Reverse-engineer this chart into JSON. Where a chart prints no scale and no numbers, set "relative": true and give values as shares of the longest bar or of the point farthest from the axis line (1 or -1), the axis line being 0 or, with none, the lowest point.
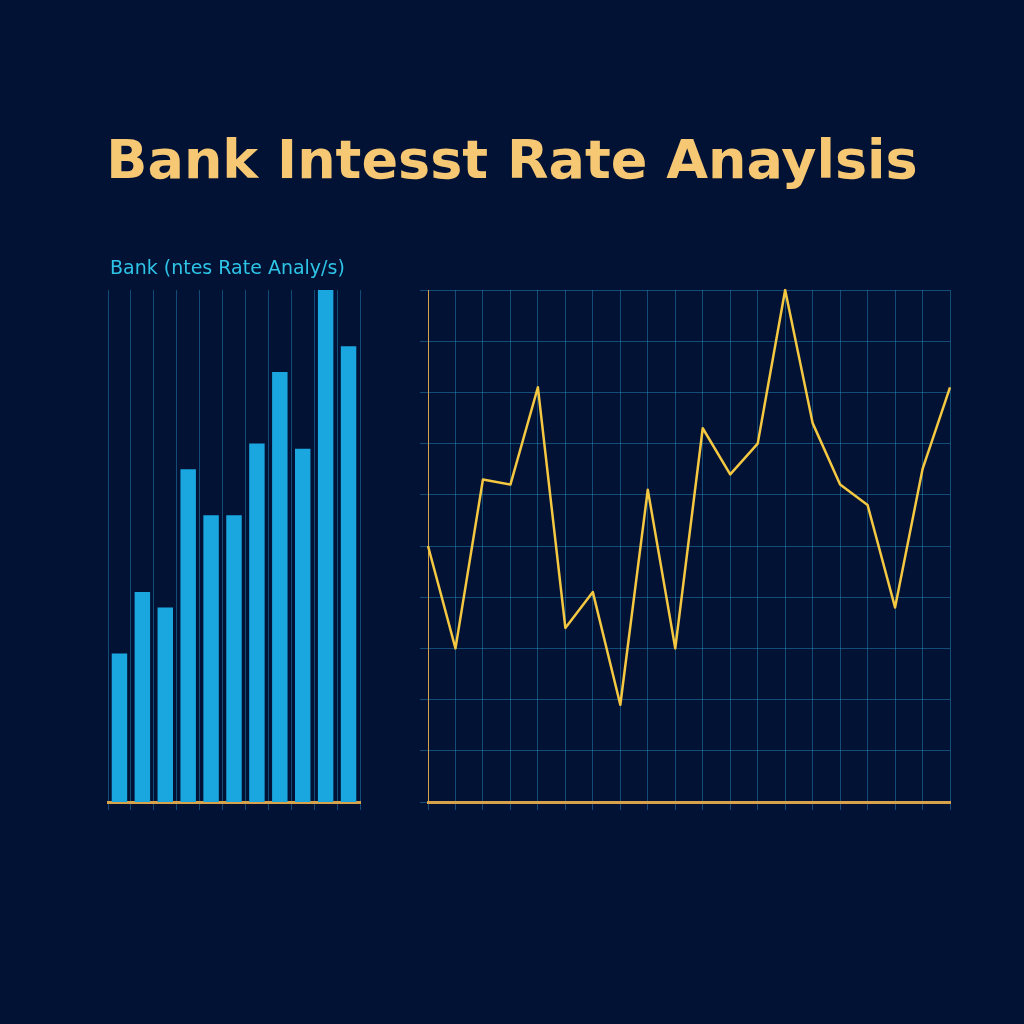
{
  "chart_data": [
    {
      "type": "bar",
      "title": "Bank Intesst Rate Anaylsis",
      "subtitle": "Bank (ntes Rate Analy/s)",
      "relative": true,
      "categories": [
        null,
        null,
        null,
        null,
        null,
        null,
        null,
        null,
        null,
        null,
        null
      ],
      "values": [
        0.29,
        0.41,
        0.38,
        0.65,
        0.56,
        0.56,
        0.7,
        0.84,
        0.69,
        1,
        0.89
      ],
      "color": "#1aa7e0",
      "grid": "x",
      "legend": false
    },
    {
      "type": "line",
      "relative": true,
      "categories": [
        null,
        null,
        null,
        null,
        null,
        null,
        null,
        null,
        null,
        null,
        null,
        null,
        null,
        null,
        null,
        null,
        null,
        null,
        null,
        null
      ],
      "values": [
        0.5,
        0.3,
        0.63,
        0.62,
        0.81,
        0.34,
        0.41,
        0.19,
        0.61,
        0.3,
        0.73,
        0.64,
        0.7,
        1,
        0.74,
        0.62,
        0.58,
        0.38,
        0.65,
        0.81
      ],
      "color": "#f5c842",
      "grid": true,
      "legend": false,
      "marker": "none"
    }
  ]
}
